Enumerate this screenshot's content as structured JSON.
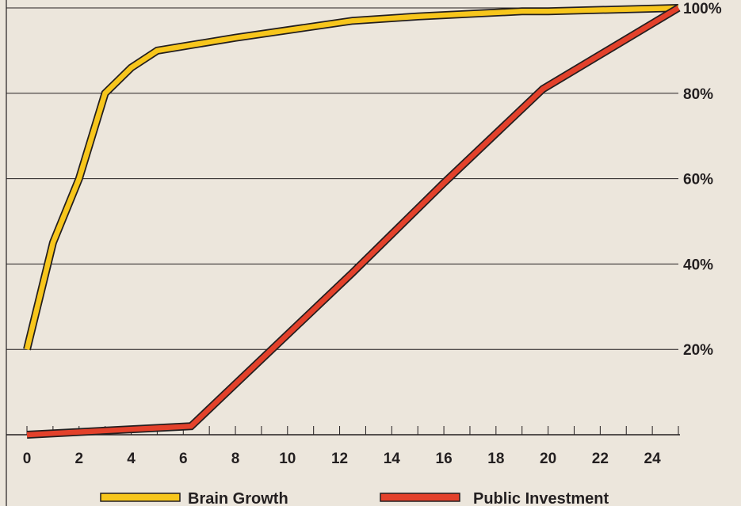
{
  "chart_data": {
    "type": "line",
    "title": "",
    "xlabel": "",
    "ylabel": "",
    "xlim": [
      0,
      25
    ],
    "ylim": [
      0,
      100
    ],
    "x_ticks": [
      0,
      2,
      4,
      6,
      8,
      10,
      12,
      14,
      16,
      18,
      20,
      22,
      24
    ],
    "y_ticks": [
      20,
      40,
      60,
      80,
      100
    ],
    "y_tick_labels": [
      "20%",
      "40%",
      "60%",
      "80%",
      "100%"
    ],
    "y_axis_side": "right",
    "grid": "horizontal",
    "legend_position": "bottom",
    "series": [
      {
        "name": "Brain Growth",
        "color": "#f7c61c",
        "points": [
          [
            0,
            20
          ],
          [
            1,
            45
          ],
          [
            2,
            60
          ],
          [
            3,
            80
          ],
          [
            4,
            86
          ],
          [
            5,
            90
          ],
          [
            8,
            93
          ],
          [
            12.5,
            97
          ],
          [
            15,
            98
          ],
          [
            19,
            99.2
          ],
          [
            20,
            99.2
          ],
          [
            25,
            100
          ]
        ]
      },
      {
        "name": "Public Investment",
        "color": "#e3412b",
        "points": [
          [
            0,
            0
          ],
          [
            6.3,
            2
          ],
          [
            12.5,
            38
          ],
          [
            16,
            59
          ],
          [
            19.8,
            81
          ],
          [
            25,
            100
          ]
        ]
      }
    ],
    "colors": {
      "background": "#ece6dc",
      "axis": "#231f20"
    }
  }
}
